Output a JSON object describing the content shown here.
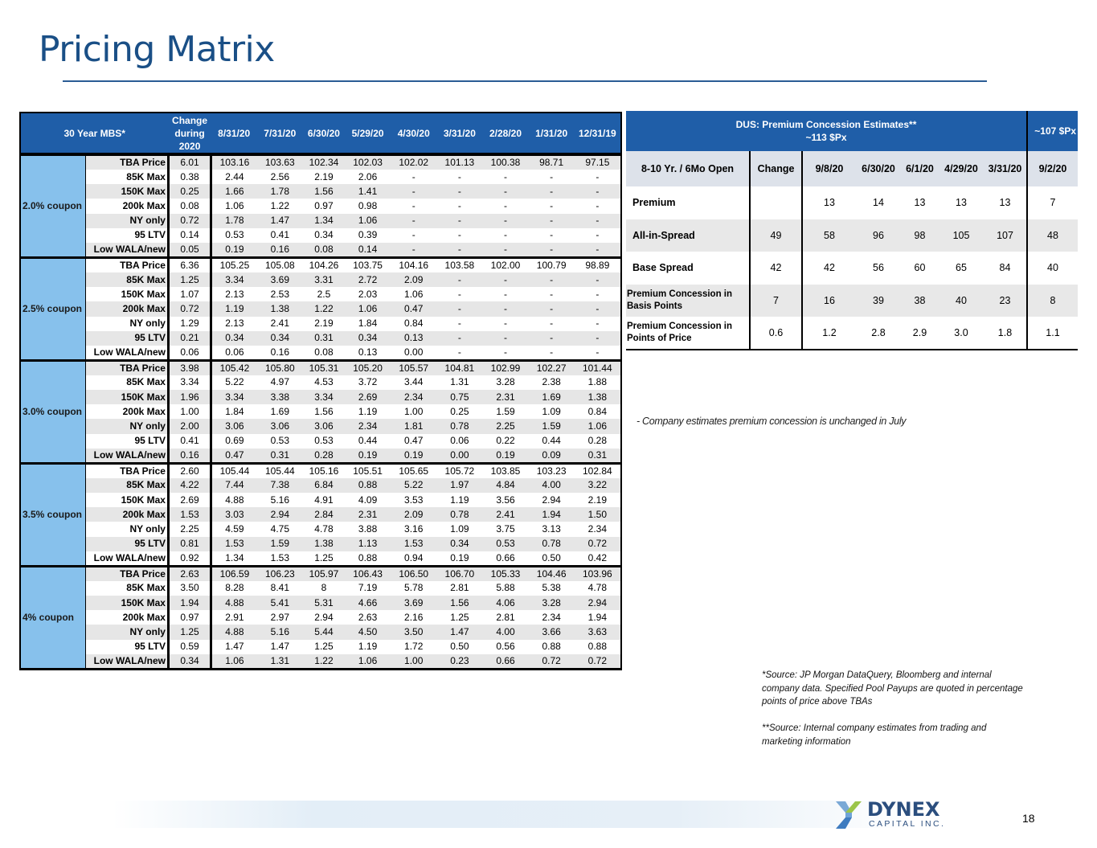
{
  "title": "Pricing Matrix",
  "mbs_table": {
    "header": {
      "corner": "30 Year MBS*",
      "change": [
        "Change",
        "during",
        "2020"
      ],
      "dates": [
        "8/31/20",
        "7/31/20",
        "6/30/20",
        "5/29/20",
        "4/30/20",
        "3/31/20",
        "2/28/20",
        "1/31/20",
        "12/31/19"
      ]
    },
    "groups": [
      {
        "coupon": "2.0% coupon",
        "rows": [
          {
            "label": "TBA Price",
            "change": "6.01",
            "values": [
              "103.16",
              "103.63",
              "102.34",
              "102.03",
              "102.02",
              "101.13",
              "100.38",
              "98.71",
              "97.15"
            ]
          },
          {
            "label": "85K Max",
            "change": "0.38",
            "values": [
              "2.44",
              "2.56",
              "2.19",
              "2.06",
              "-",
              "-",
              "-",
              "-",
              "-"
            ]
          },
          {
            "label": "150K Max",
            "change": "0.25",
            "values": [
              "1.66",
              "1.78",
              "1.56",
              "1.41",
              "-",
              "-",
              "-",
              "-",
              "-"
            ]
          },
          {
            "label": "200k Max",
            "change": "0.08",
            "values": [
              "1.06",
              "1.22",
              "0.97",
              "0.98",
              "-",
              "-",
              "-",
              "-",
              "-"
            ]
          },
          {
            "label": "NY only",
            "change": "0.72",
            "values": [
              "1.78",
              "1.47",
              "1.34",
              "1.06",
              "-",
              "-",
              "-",
              "-",
              "-"
            ]
          },
          {
            "label": "95 LTV",
            "change": "0.14",
            "values": [
              "0.53",
              "0.41",
              "0.34",
              "0.39",
              "-",
              "-",
              "-",
              "-",
              "-"
            ]
          },
          {
            "label": "Low WALA/new",
            "change": "0.05",
            "values": [
              "0.19",
              "0.16",
              "0.08",
              "0.14",
              "-",
              "-",
              "-",
              "-",
              "-"
            ]
          }
        ]
      },
      {
        "coupon": "2.5% coupon",
        "rows": [
          {
            "label": "TBA Price",
            "change": "6.36",
            "values": [
              "105.25",
              "105.08",
              "104.26",
              "103.75",
              "104.16",
              "103.58",
              "102.00",
              "100.79",
              "98.89"
            ]
          },
          {
            "label": "85K Max",
            "change": "1.25",
            "values": [
              "3.34",
              "3.69",
              "3.31",
              "2.72",
              "2.09",
              "-",
              "-",
              "-",
              "-"
            ]
          },
          {
            "label": "150K Max",
            "change": "1.07",
            "values": [
              "2.13",
              "2.53",
              "2.5",
              "2.03",
              "1.06",
              "-",
              "-",
              "-",
              "-"
            ]
          },
          {
            "label": "200k Max",
            "change": "0.72",
            "values": [
              "1.19",
              "1.38",
              "1.22",
              "1.06",
              "0.47",
              "-",
              "-",
              "-",
              "-"
            ]
          },
          {
            "label": "NY only",
            "change": "1.29",
            "values": [
              "2.13",
              "2.41",
              "2.19",
              "1.84",
              "0.84",
              "-",
              "-",
              "-",
              "-"
            ]
          },
          {
            "label": "95 LTV",
            "change": "0.21",
            "values": [
              "0.34",
              "0.34",
              "0.31",
              "0.34",
              "0.13",
              "-",
              "-",
              "-",
              "-"
            ]
          },
          {
            "label": "Low WALA/new",
            "change": "0.06",
            "values": [
              "0.06",
              "0.16",
              "0.08",
              "0.13",
              "0.00",
              "-",
              "-",
              "-",
              "-"
            ]
          }
        ]
      },
      {
        "coupon": "3.0% coupon",
        "rows": [
          {
            "label": "TBA Price",
            "change": "3.98",
            "values": [
              "105.42",
              "105.80",
              "105.31",
              "105.20",
              "105.57",
              "104.81",
              "102.99",
              "102.27",
              "101.44"
            ]
          },
          {
            "label": "85K Max",
            "change": "3.34",
            "values": [
              "5.22",
              "4.97",
              "4.53",
              "3.72",
              "3.44",
              "1.31",
              "3.28",
              "2.38",
              "1.88"
            ]
          },
          {
            "label": "150K Max",
            "change": "1.96",
            "values": [
              "3.34",
              "3.38",
              "3.34",
              "2.69",
              "2.34",
              "0.75",
              "2.31",
              "1.69",
              "1.38"
            ]
          },
          {
            "label": "200k Max",
            "change": "1.00",
            "values": [
              "1.84",
              "1.69",
              "1.56",
              "1.19",
              "1.00",
              "0.25",
              "1.59",
              "1.09",
              "0.84"
            ]
          },
          {
            "label": "NY only",
            "change": "2.00",
            "values": [
              "3.06",
              "3.06",
              "3.06",
              "2.34",
              "1.81",
              "0.78",
              "2.25",
              "1.59",
              "1.06"
            ]
          },
          {
            "label": "95 LTV",
            "change": "0.41",
            "values": [
              "0.69",
              "0.53",
              "0.53",
              "0.44",
              "0.47",
              "0.06",
              "0.22",
              "0.44",
              "0.28"
            ]
          },
          {
            "label": "Low WALA/new",
            "change": "0.16",
            "values": [
              "0.47",
              "0.31",
              "0.28",
              "0.19",
              "0.19",
              "0.00",
              "0.19",
              "0.09",
              "0.31"
            ]
          }
        ]
      },
      {
        "coupon": "3.5% coupon",
        "rows": [
          {
            "label": "TBA Price",
            "change": "2.60",
            "values": [
              "105.44",
              "105.44",
              "105.16",
              "105.51",
              "105.65",
              "105.72",
              "103.85",
              "103.23",
              "102.84"
            ]
          },
          {
            "label": "85K Max",
            "change": "4.22",
            "values": [
              "7.44",
              "7.38",
              "6.84",
              "0.88",
              "5.22",
              "1.97",
              "4.84",
              "4.00",
              "3.22"
            ]
          },
          {
            "label": "150K Max",
            "change": "2.69",
            "values": [
              "4.88",
              "5.16",
              "4.91",
              "4.09",
              "3.53",
              "1.19",
              "3.56",
              "2.94",
              "2.19"
            ]
          },
          {
            "label": "200k Max",
            "change": "1.53",
            "values": [
              "3.03",
              "2.94",
              "2.84",
              "2.31",
              "2.09",
              "0.78",
              "2.41",
              "1.94",
              "1.50"
            ]
          },
          {
            "label": "NY only",
            "change": "2.25",
            "values": [
              "4.59",
              "4.75",
              "4.78",
              "3.88",
              "3.16",
              "1.09",
              "3.75",
              "3.13",
              "2.34"
            ]
          },
          {
            "label": "95 LTV",
            "change": "0.81",
            "values": [
              "1.53",
              "1.59",
              "1.38",
              "1.13",
              "1.53",
              "0.34",
              "0.53",
              "0.78",
              "0.72"
            ]
          },
          {
            "label": "Low WALA/new",
            "change": "0.92",
            "values": [
              "1.34",
              "1.53",
              "1.25",
              "0.88",
              "0.94",
              "0.19",
              "0.66",
              "0.50",
              "0.42"
            ]
          }
        ]
      },
      {
        "coupon": "4% coupon",
        "rows": [
          {
            "label": "TBA Price",
            "change": "2.63",
            "values": [
              "106.59",
              "106.23",
              "105.97",
              "106.43",
              "106.50",
              "106.70",
              "105.33",
              "104.46",
              "103.96"
            ]
          },
          {
            "label": "85K Max",
            "change": "3.50",
            "values": [
              "8.28",
              "8.41",
              "8",
              "7.19",
              "5.78",
              "2.81",
              "5.88",
              "5.38",
              "4.78"
            ]
          },
          {
            "label": "150K Max",
            "change": "1.94",
            "values": [
              "4.88",
              "5.41",
              "5.31",
              "4.66",
              "3.69",
              "1.56",
              "4.06",
              "3.28",
              "2.94"
            ]
          },
          {
            "label": "200k Max",
            "change": "0.97",
            "values": [
              "2.91",
              "2.97",
              "2.94",
              "2.63",
              "2.16",
              "1.25",
              "2.81",
              "2.34",
              "1.94"
            ]
          },
          {
            "label": "NY only",
            "change": "1.25",
            "values": [
              "4.88",
              "5.16",
              "5.44",
              "4.50",
              "3.50",
              "1.47",
              "4.00",
              "3.66",
              "3.63"
            ]
          },
          {
            "label": "95 LTV",
            "change": "0.59",
            "values": [
              "1.47",
              "1.47",
              "1.25",
              "1.19",
              "1.72",
              "0.50",
              "0.56",
              "0.88",
              "0.88"
            ]
          },
          {
            "label": "Low WALA/new",
            "change": "0.34",
            "values": [
              "1.06",
              "1.31",
              "1.22",
              "1.06",
              "1.00",
              "0.23",
              "0.66",
              "0.72",
              "0.72"
            ]
          }
        ]
      }
    ]
  },
  "dus_table": {
    "title_line1": "DUS: Premium Concession Estimates**",
    "title_line2": "~113 $Px",
    "side_title": "~107 $Px",
    "columns": [
      "8-10 Yr. / 6Mo Open",
      "Change",
      "9/8/20",
      "6/30/20",
      "6/1/20",
      "4/29/20",
      "3/31/20",
      "9/2/20"
    ],
    "rows": [
      {
        "label": "Premium",
        "cells": [
          "",
          "13",
          "14",
          "13",
          "13",
          "13",
          "7"
        ]
      },
      {
        "label": "All-in-Spread",
        "cells": [
          "49",
          "58",
          "96",
          "98",
          "105",
          "107",
          "48"
        ]
      },
      {
        "label": "Base Spread",
        "cells": [
          "42",
          "42",
          "56",
          "60",
          "65",
          "84",
          "40"
        ]
      },
      {
        "label": "Premium Concession in Basis Points",
        "cells": [
          "7",
          "16",
          "39",
          "38",
          "40",
          "23",
          "8"
        ]
      },
      {
        "label": "Premium Concession in Points of Price",
        "cells": [
          "0.6",
          "1.2",
          "2.8",
          "2.9",
          "3.0",
          "1.8",
          "1.1"
        ]
      }
    ]
  },
  "note": "- Company estimates premium concession is unchanged in July",
  "source1": "*Source: JP Morgan DataQuery, Bloomberg and internal company data. Specified Pool Payups are quoted in percentage points of price above TBAs",
  "source2": "**Source: Internal company estimates from trading and marketing information",
  "logo": {
    "name": "DYNEX",
    "sub": "CAPITAL INC."
  },
  "page_number": "18",
  "colors": {
    "title": "#1a4f86",
    "header": "#1f5ea8",
    "coupon": "#87c1ec"
  }
}
